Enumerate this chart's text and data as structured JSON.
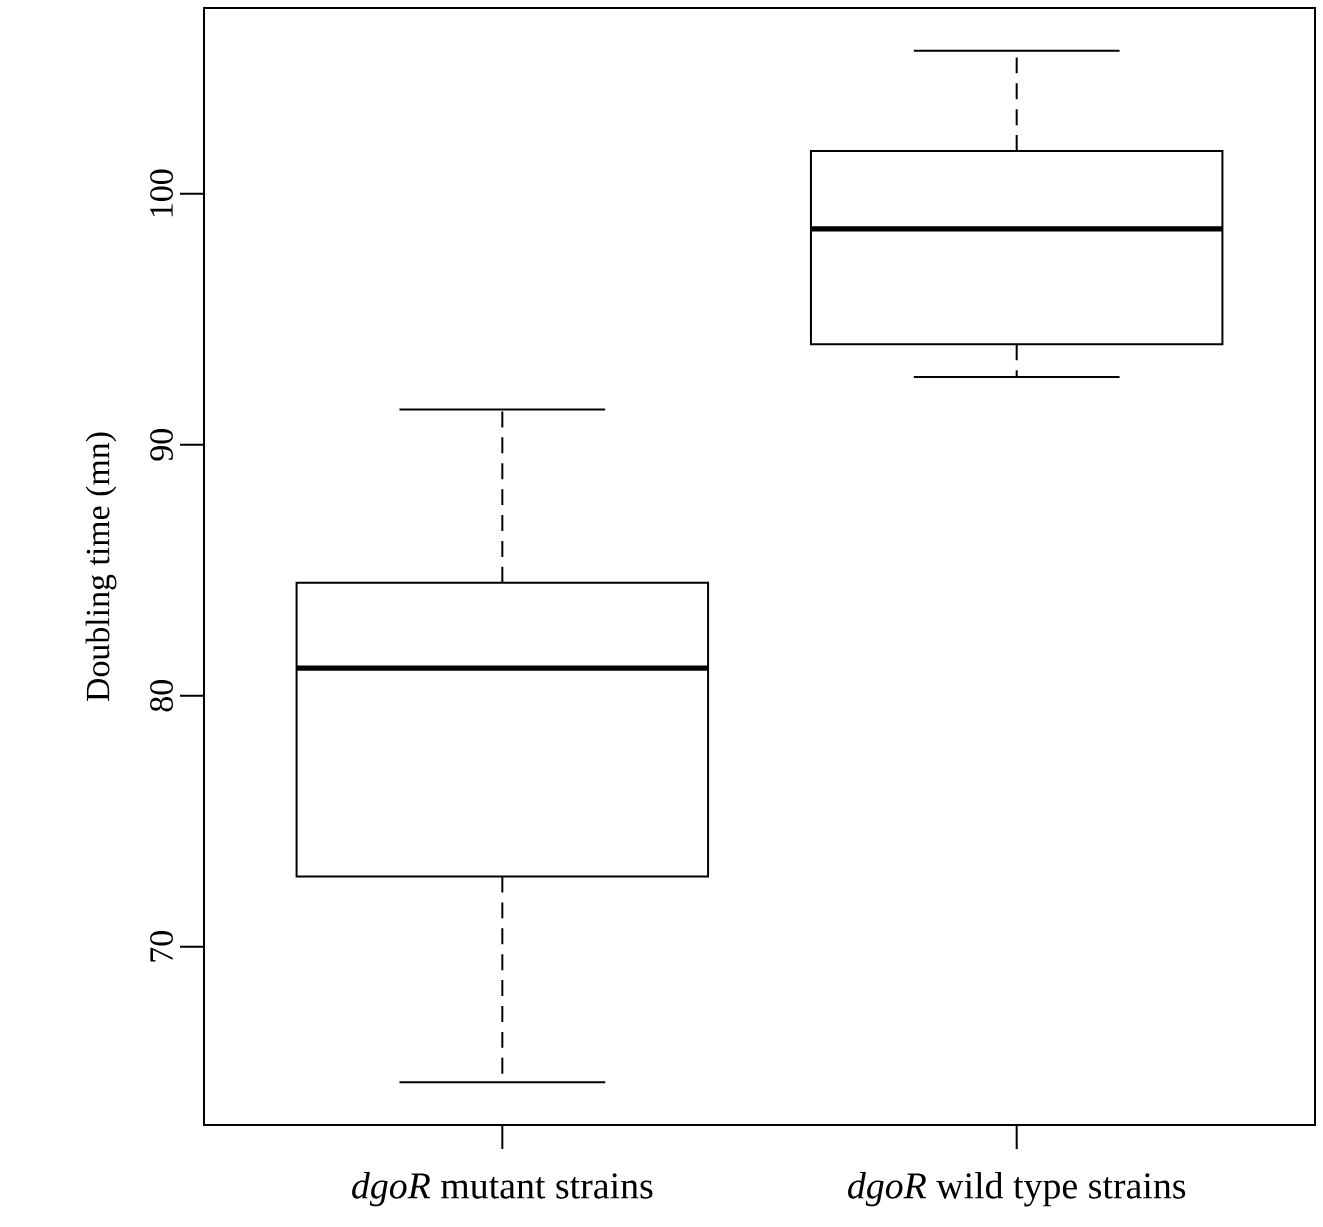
{
  "chart_data": {
    "type": "box",
    "ylabel": "Doubling time (mn)",
    "categories": [
      "*dgoR* mutant strains",
      "*dgoR* wild type strains"
    ],
    "boxes": [
      {
        "low": 64.6,
        "q1": 72.8,
        "median": 81.1,
        "q3": 84.5,
        "high": 91.4
      },
      {
        "low": 92.7,
        "q1": 94.0,
        "median": 98.6,
        "q3": 101.7,
        "high": 105.7
      }
    ],
    "ylim": [
      62.9,
      107.4
    ],
    "yticks": [
      70,
      80,
      90,
      100
    ]
  }
}
